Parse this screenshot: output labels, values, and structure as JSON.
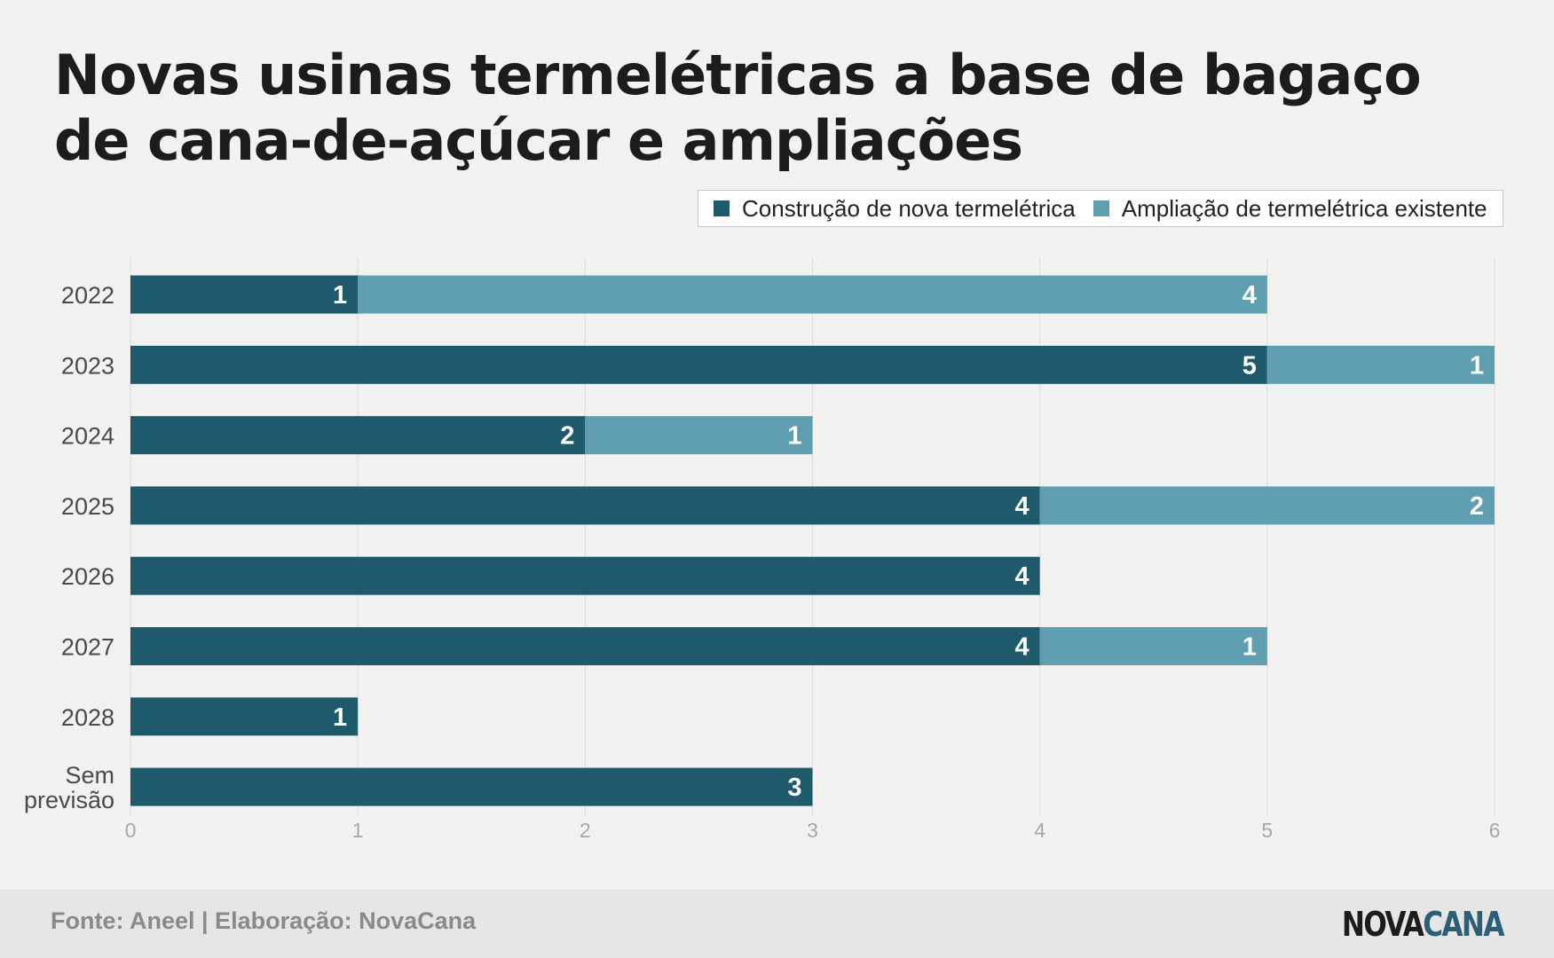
{
  "title": "Novas usinas termelétricas a base de bagaço de cana-de-açúcar e ampliações",
  "legend": {
    "items": [
      {
        "label": "Construção de nova termelétrica",
        "color": "#1e5a6c"
      },
      {
        "label": "Ampliação de termelétrica existente",
        "color": "#5f9fb1"
      }
    ]
  },
  "footer": {
    "source": "Fonte: Aneel | Elaboração: NovaCana",
    "logo_part1": "NOVA",
    "logo_part2": "CANA"
  },
  "chart_data": {
    "type": "bar",
    "orientation": "horizontal",
    "stacked": true,
    "title": "Novas usinas termelétricas a base de bagaço de cana-de-açúcar e ampliações",
    "categories": [
      [
        "2022"
      ],
      [
        "2023"
      ],
      [
        "2024"
      ],
      [
        "2025"
      ],
      [
        "2026"
      ],
      [
        "2027"
      ],
      [
        "2028"
      ],
      [
        "Sem",
        "previsão"
      ]
    ],
    "series": [
      {
        "name": "Construção de nova termelétrica",
        "color": "#1e5a6c",
        "values": [
          1,
          5,
          2,
          4,
          4,
          4,
          1,
          3
        ]
      },
      {
        "name": "Ampliação de termelétrica existente",
        "color": "#5f9fb1",
        "values": [
          4,
          1,
          1,
          2,
          0,
          1,
          0,
          0
        ]
      }
    ],
    "xlim": [
      0,
      6
    ],
    "xticks": [
      0,
      1,
      2,
      3,
      4,
      5,
      6
    ],
    "grid": true,
    "legend_position": "top-right",
    "data_labels": true
  }
}
